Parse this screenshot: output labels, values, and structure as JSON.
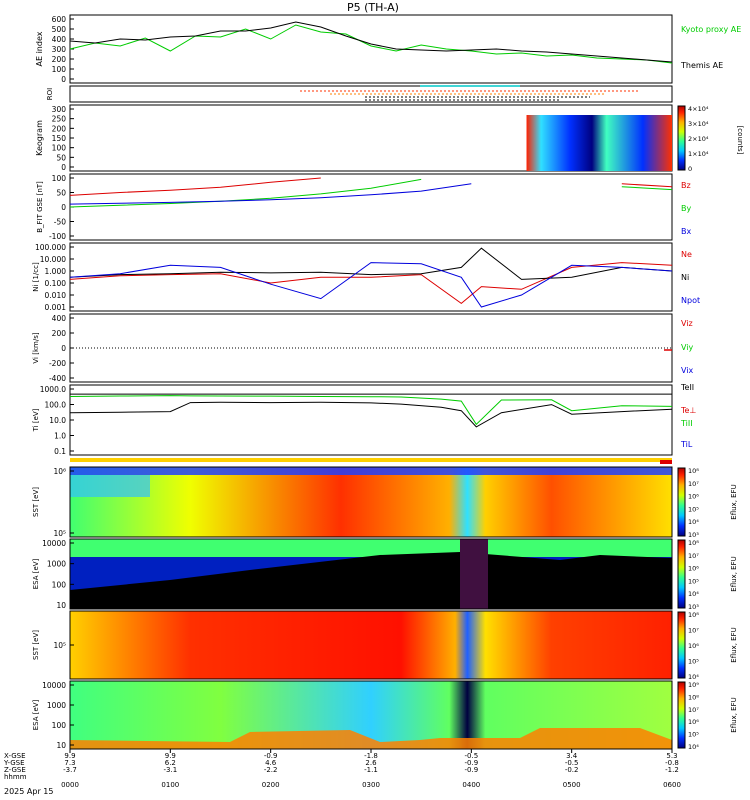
{
  "title": "P5 (TH-A)",
  "date_label": "2025 Apr 15",
  "ephemeris": {
    "row_labels": [
      "X-GSE",
      "Y-GSE",
      "Z-GSE",
      "hhmm"
    ],
    "ticks": [
      "0000",
      "0100",
      "0200",
      "0300",
      "0400",
      "0500",
      "0600"
    ],
    "x_gse": [
      "9.9",
      "9.9",
      "-0.9",
      "-1.8",
      "-0.5",
      "3.4",
      "5.3"
    ],
    "y_gse": [
      "7.3",
      "6.2",
      "4.6",
      "2.6",
      "-0.9",
      "-0.5",
      "-0.8"
    ],
    "z_gse": [
      "-3.7",
      "-3.1",
      "-2.2",
      "-1.1",
      "-0.9",
      "-0.2",
      "-1.2"
    ]
  },
  "colorbar_labels": {
    "counts": "[counts]",
    "eflux": "Eflux, EFU"
  },
  "chart_data": [
    {
      "id": "ae",
      "type": "line",
      "ylabel": "AE index",
      "ylim": [
        0,
        600
      ],
      "yticks": [
        "600",
        "500",
        "400",
        "300",
        "200",
        "100",
        "0"
      ],
      "x": [
        0,
        0.25,
        0.5,
        0.75,
        1.0,
        1.25,
        1.5,
        1.75,
        2.0,
        2.25,
        2.5,
        2.75,
        3.0,
        3.25,
        3.5,
        3.75,
        4.0,
        4.25,
        4.5,
        4.75,
        5.0,
        5.25,
        5.5,
        5.75,
        6.0
      ],
      "series": [
        {
          "name": "Kyoto proxy AE",
          "color": "#00cc00",
          "values": [
            300,
            360,
            330,
            410,
            280,
            430,
            420,
            500,
            400,
            540,
            470,
            450,
            330,
            280,
            340,
            300,
            280,
            250,
            260,
            230,
            240,
            210,
            200,
            190,
            160
          ]
        },
        {
          "name": "Themis AE",
          "color": "#000000",
          "values": [
            380,
            360,
            400,
            390,
            420,
            430,
            480,
            480,
            510,
            570,
            520,
            430,
            350,
            300,
            290,
            280,
            290,
            300,
            280,
            270,
            250,
            230,
            210,
            190,
            170
          ]
        }
      ]
    },
    {
      "id": "roi",
      "type": "line",
      "ylabel": "ROI"
    },
    {
      "id": "keogram",
      "type": "heatmap",
      "ylabel": "Keogram",
      "ylim": [
        0,
        300
      ],
      "yticks": [
        "300",
        "250",
        "200",
        "150",
        "100",
        "50",
        "0"
      ],
      "colorbar_ticks": [
        "4×10⁴",
        "3×10⁴",
        "2×10⁴",
        "1×10⁴",
        "0"
      ],
      "coverage_hours": [
        4.55,
        6.0
      ]
    },
    {
      "id": "bfield",
      "type": "line",
      "ylabel": "B_FIT GSE [nT]",
      "ylim": [
        -100,
        100
      ],
      "yticks": [
        "100",
        "50",
        "0",
        "-50",
        "-100"
      ],
      "x": [
        0,
        0.5,
        1.0,
        1.5,
        2.0,
        2.5,
        3.0,
        3.5,
        4.0,
        4.5,
        5.0,
        5.5,
        6.0
      ],
      "series": [
        {
          "name": "Bz",
          "color": "#dd0000",
          "values": [
            40,
            50,
            58,
            68,
            85,
            100,
            null,
            null,
            null,
            null,
            null,
            80,
            70
          ]
        },
        {
          "name": "By",
          "color": "#00cc00",
          "values": [
            0,
            6,
            12,
            20,
            30,
            45,
            65,
            95,
            null,
            null,
            null,
            70,
            60
          ]
        },
        {
          "name": "Bx",
          "color": "#0000dd",
          "values": [
            10,
            13,
            16,
            20,
            25,
            32,
            42,
            55,
            80,
            null,
            null,
            null,
            null
          ]
        }
      ]
    },
    {
      "id": "density",
      "type": "line",
      "ylabel": "Ni [1/cc]",
      "scale": "log",
      "yticks": [
        "100.000",
        "10.000",
        "1.000",
        "0.100",
        "0.010",
        "0.001"
      ],
      "x": [
        0,
        0.5,
        1.0,
        1.5,
        2.0,
        2.5,
        3.0,
        3.5,
        3.9,
        4.1,
        4.5,
        5.0,
        5.5,
        6.0
      ],
      "series": [
        {
          "name": "Ne",
          "color": "#dd0000",
          "values": [
            0.2,
            0.4,
            0.5,
            0.6,
            0.1,
            0.3,
            0.3,
            0.5,
            0.002,
            0.05,
            0.03,
            2,
            5,
            3
          ]
        },
        {
          "name": "Ni",
          "color": "#000000",
          "values": [
            0.3,
            0.5,
            0.6,
            0.8,
            0.7,
            0.8,
            0.5,
            0.6,
            2,
            80,
            0.2,
            0.3,
            2,
            1
          ]
        },
        {
          "name": "Npot",
          "color": "#0000dd",
          "values": [
            0.3,
            0.6,
            3,
            2,
            0.08,
            0.005,
            5,
            4,
            0.3,
            0.001,
            0.01,
            3,
            2,
            1
          ]
        }
      ]
    },
    {
      "id": "velocity",
      "type": "line",
      "ylabel": "Vi [km/s]",
      "ylim": [
        -500,
        500
      ],
      "yticks": [
        "400",
        "200",
        "0",
        "-200",
        "-400"
      ],
      "series": [
        {
          "name": "Viz",
          "color": "#dd0000"
        },
        {
          "name": "Viy",
          "color": "#00cc00"
        },
        {
          "name": "Vix",
          "color": "#0000dd"
        }
      ]
    },
    {
      "id": "temperature",
      "type": "line",
      "ylabel": "Ti [eV]",
      "scale": "log",
      "yticks": [
        "1000.0",
        "100.0",
        "10.0",
        "1.0",
        "0.1"
      ],
      "x": [
        0,
        0.5,
        1.0,
        1.2,
        1.5,
        2.0,
        2.5,
        3.0,
        3.3,
        3.7,
        3.9,
        4.05,
        4.3,
        4.8,
        5.0,
        5.5,
        6.0
      ],
      "series": [
        {
          "name": "TeII",
          "color": "#000000",
          "values": [
            8000,
            8000,
            8000,
            8000,
            8000,
            8000,
            8000,
            8000,
            8000,
            8000,
            8000,
            8000,
            8000,
            8000,
            8000,
            8000,
            8000
          ]
        },
        {
          "name": "Te⊥",
          "color": "#dd0000",
          "values": [
            null,
            null,
            null,
            null,
            null,
            null,
            null,
            null,
            null,
            null,
            null,
            null,
            null,
            null,
            null,
            null,
            null
          ]
        },
        {
          "name": "TiII",
          "color": "#00cc00",
          "values": [
            5000,
            5500,
            6000,
            5600,
            5500,
            5400,
            5000,
            4800,
            4500,
            3000,
            2000,
            20,
            2500,
            2600,
            300,
            800,
            700
          ]
        },
        {
          "name": "TiL",
          "color": "#0000dd",
          "values": [
            null,
            null,
            null,
            null,
            null,
            null,
            null,
            null,
            null,
            null,
            null,
            null,
            null,
            null,
            null,
            null,
            null
          ]
        }
      ],
      "black_values": [
        200,
        220,
        250,
        1500,
        1600,
        1500,
        1600,
        1400,
        1100,
        600,
        300,
        12,
        200,
        1000,
        150,
        250,
        400
      ]
    },
    {
      "id": "sst_ion",
      "type": "heatmap",
      "ylabel": "SST [eV]",
      "yticks": [
        "10⁶",
        "10⁵"
      ],
      "colorbar_ticks": [
        "10⁸",
        "10⁷",
        "10⁶",
        "10⁵",
        "10⁴",
        "10³"
      ]
    },
    {
      "id": "esa_ion",
      "type": "heatmap",
      "ylabel": "ESA [eV]",
      "yticks": [
        "10000",
        "1000",
        "100",
        "10"
      ],
      "colorbar_ticks": [
        "10⁸",
        "10⁷",
        "10⁶",
        "10⁵",
        "10⁴",
        "10³"
      ]
    },
    {
      "id": "sst_elec",
      "type": "heatmap",
      "ylabel": "SST [eV]",
      "yticks": [
        "10⁵"
      ],
      "colorbar_ticks": [
        "10⁸",
        "10⁷",
        "10⁶",
        "10⁵",
        "10⁴"
      ]
    },
    {
      "id": "esa_elec",
      "type": "heatmap",
      "ylabel": "ESA [eV]",
      "yticks": [
        "10000",
        "1000",
        "100",
        "10"
      ],
      "colorbar_ticks": [
        "10⁹",
        "10⁸",
        "10⁷",
        "10⁶",
        "10⁵",
        "10⁴"
      ]
    }
  ]
}
